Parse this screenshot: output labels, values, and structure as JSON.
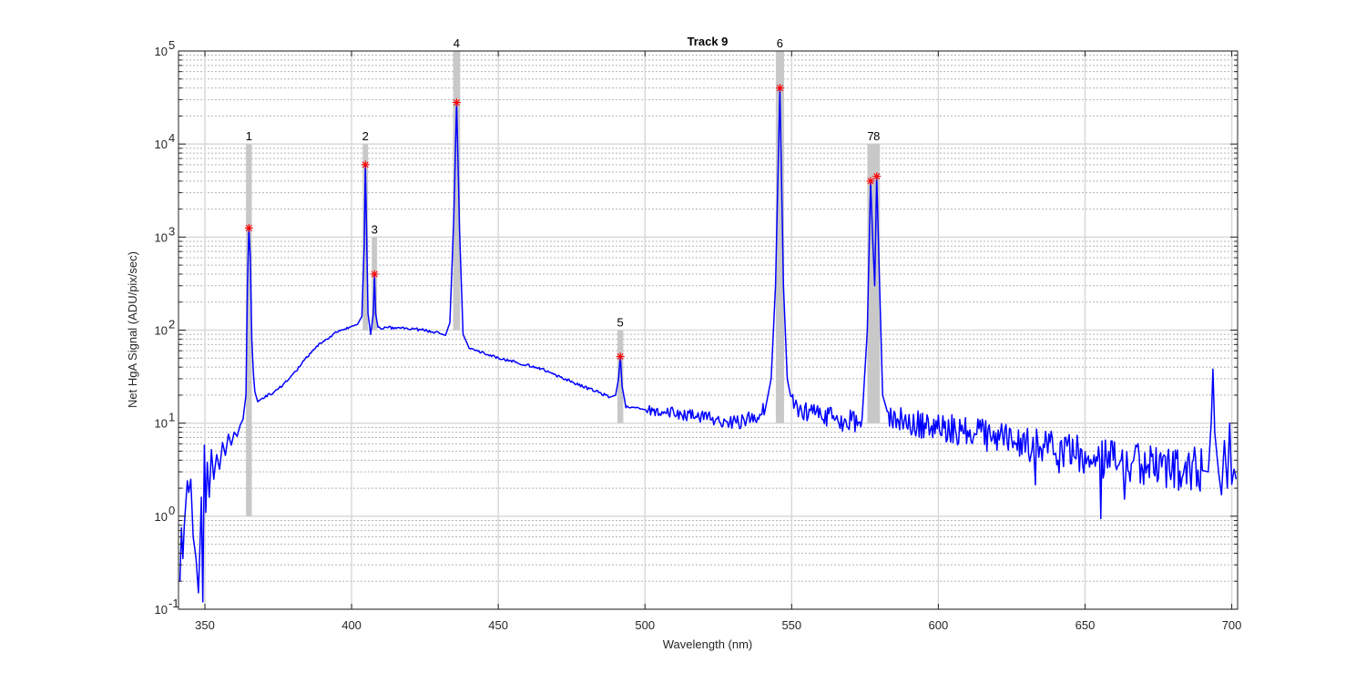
{
  "chart_data": {
    "type": "line",
    "title": "Track 9",
    "xlabel": "Wavelength (nm)",
    "ylabel": "Net HgA Signal (ADU/pix/sec)",
    "xlim": [
      341,
      702
    ],
    "ylim": [
      0.1,
      100000
    ],
    "yscale": "log",
    "grid": true,
    "minor_grid": true,
    "x_ticks": [
      350,
      400,
      450,
      500,
      550,
      600,
      650,
      700
    ],
    "x_tick_labels": [
      "350",
      "400",
      "450",
      "500",
      "550",
      "600",
      "650",
      "700"
    ],
    "y_tick_exponents": [
      -1,
      0,
      1,
      2,
      3,
      4,
      5
    ],
    "y_tick_base": "10",
    "colors": {
      "series": "#0000ff",
      "peak_marker": "#ff0000",
      "band": "#c8c8c8"
    },
    "series": [
      {
        "points": [
          [
            341.5,
            0.2
          ],
          [
            342.0,
            0.75
          ],
          [
            342.5,
            0.35
          ],
          [
            343.0,
            0.8
          ],
          [
            344.0,
            2.4
          ],
          [
            344.5,
            1.8
          ],
          [
            345.2,
            2.5
          ],
          [
            346.0,
            0.6
          ],
          [
            347.0,
            0.35
          ],
          [
            347.8,
            0.15
          ],
          [
            348.3,
            0.45
          ],
          [
            348.8,
            1.6
          ],
          [
            349.3,
            0.12
          ],
          [
            349.8,
            5.8
          ],
          [
            350.3,
            1.1
          ],
          [
            350.8,
            3.8
          ],
          [
            351.5,
            1.6
          ],
          [
            352.2,
            5.2
          ],
          [
            353.0,
            2.5
          ],
          [
            354.0,
            4.6
          ],
          [
            355.0,
            3.2
          ],
          [
            356.0,
            6.2
          ],
          [
            357.0,
            4.5
          ],
          [
            358.0,
            7.6
          ],
          [
            359.0,
            5.8
          ],
          [
            360.0,
            8.0
          ],
          [
            361.0,
            7.2
          ],
          [
            362.0,
            9.5
          ],
          [
            363.0,
            11.0
          ],
          [
            364.0,
            20.0
          ],
          [
            364.5,
            300.0
          ],
          [
            365.0,
            1250.0
          ],
          [
            365.5,
            600.0
          ],
          [
            366.0,
            80.0
          ],
          [
            366.5,
            35.0
          ],
          [
            367.0,
            22.0
          ],
          [
            368.0,
            17.0
          ],
          [
            370.0,
            19.0
          ],
          [
            373.0,
            21.0
          ],
          [
            376.0,
            25.0
          ],
          [
            380.0,
            33.0
          ],
          [
            385.0,
            52.0
          ],
          [
            390.0,
            75.0
          ],
          [
            395.0,
            95.0
          ],
          [
            400.0,
            110.0
          ],
          [
            402.0,
            115.0
          ],
          [
            403.5,
            140.0
          ],
          [
            404.3,
            800.0
          ],
          [
            404.7,
            6000.0
          ],
          [
            405.1,
            1200.0
          ],
          [
            405.6,
            150.0
          ],
          [
            406.5,
            90.0
          ],
          [
            407.4,
            150.0
          ],
          [
            407.8,
            400.0
          ],
          [
            408.2,
            150.0
          ],
          [
            409.0,
            105.0
          ],
          [
            412.0,
            106.0
          ],
          [
            418.0,
            105.0
          ],
          [
            425.0,
            100.0
          ],
          [
            430.0,
            92.0
          ],
          [
            432.0,
            88.0
          ],
          [
            433.5,
            120.0
          ],
          [
            434.8,
            1500.0
          ],
          [
            435.8,
            28000.0
          ],
          [
            436.8,
            1200.0
          ],
          [
            438.0,
            90.0
          ],
          [
            440.0,
            65.0
          ],
          [
            445.0,
            57.0
          ],
          [
            450.0,
            50.0
          ],
          [
            455.0,
            46.0
          ],
          [
            460.0,
            42.0
          ],
          [
            465.0,
            38.0
          ],
          [
            470.0,
            32.0
          ],
          [
            475.0,
            28.0
          ],
          [
            480.0,
            24.0
          ],
          [
            485.0,
            21.0
          ],
          [
            488.0,
            19.0
          ],
          [
            490.0,
            20.0
          ],
          [
            491.0,
            30.0
          ],
          [
            491.6,
            52.0
          ],
          [
            492.2,
            25.0
          ],
          [
            493.5,
            15.0
          ],
          [
            496.0,
            14.5
          ],
          [
            500.0,
            14.0
          ],
          [
            505.0,
            13.0
          ],
          [
            510.0,
            13.0
          ],
          [
            515.0,
            12.0
          ],
          [
            520.0,
            12.0
          ],
          [
            525.0,
            11.0
          ],
          [
            530.0,
            10.0
          ],
          [
            535.0,
            11.0
          ],
          [
            538.0,
            12.0
          ],
          [
            541.0,
            14.0
          ],
          [
            543.0,
            30.0
          ],
          [
            544.5,
            300.0
          ],
          [
            546.0,
            40000.0
          ],
          [
            547.2,
            300.0
          ],
          [
            548.5,
            30.0
          ],
          [
            550.0,
            17.0
          ],
          [
            553.0,
            14.0
          ],
          [
            556.0,
            13.0
          ],
          [
            560.0,
            12.0
          ],
          [
            565.0,
            11.0
          ],
          [
            570.0,
            10.5
          ],
          [
            574.0,
            11.0
          ],
          [
            575.8,
            100.0
          ],
          [
            576.9,
            4000.0
          ],
          [
            577.6,
            1000.0
          ],
          [
            578.3,
            300.0
          ],
          [
            579.0,
            4500.0
          ],
          [
            579.8,
            500.0
          ],
          [
            581.0,
            20.0
          ],
          [
            583.0,
            12.0
          ],
          [
            586.0,
            11.0
          ],
          [
            590.0,
            10.0
          ],
          [
            595.0,
            9.5
          ],
          [
            600.0,
            9.0
          ],
          [
            605.0,
            8.5
          ],
          [
            610.0,
            8.0
          ],
          [
            615.0,
            7.5
          ],
          [
            620.0,
            7.0
          ],
          [
            625.0,
            6.5
          ],
          [
            630.0,
            6.0
          ],
          [
            635.0,
            5.5
          ],
          [
            640.0,
            5.2
          ],
          [
            645.0,
            4.8
          ],
          [
            650.0,
            4.5
          ],
          [
            655.0,
            4.2
          ],
          [
            660.0,
            4.0
          ],
          [
            665.0,
            3.8
          ],
          [
            670.0,
            3.6
          ],
          [
            675.0,
            3.4
          ],
          [
            680.0,
            3.3
          ],
          [
            685.0,
            3.2
          ],
          [
            690.0,
            3.1
          ],
          [
            692.0,
            3.0
          ],
          [
            693.0,
            10.0
          ],
          [
            693.6,
            38.0
          ],
          [
            694.2,
            8.0
          ],
          [
            695.5,
            3.0
          ],
          [
            696.5,
            1.7
          ],
          [
            697.5,
            6.5
          ],
          [
            698.5,
            2.0
          ],
          [
            699.3,
            10.0
          ],
          [
            700.0,
            2.2
          ],
          [
            700.8,
            3.2
          ],
          [
            701.5,
            2.5
          ]
        ]
      }
    ],
    "peaks": [
      {
        "label": "1",
        "x": 365.0,
        "y": 1250,
        "band": [
          364.0,
          366.0
        ],
        "band_top": 10000,
        "label_y": 10000
      },
      {
        "label": "2",
        "x": 404.7,
        "y": 6000,
        "band": [
          403.8,
          405.6
        ],
        "band_top": 10000,
        "label_y": 10000
      },
      {
        "label": "3",
        "x": 407.8,
        "y": 400,
        "band": [
          406.9,
          408.7
        ],
        "band_top": 1000,
        "label_y": 1000
      },
      {
        "label": "4",
        "x": 435.8,
        "y": 28000,
        "band": [
          434.6,
          437.0
        ],
        "band_top": 100000,
        "label_y": 100000
      },
      {
        "label": "5",
        "x": 491.6,
        "y": 52,
        "band": [
          490.6,
          492.6
        ],
        "band_top": 100,
        "label_y": 100
      },
      {
        "label": "6",
        "x": 546.0,
        "y": 40000,
        "band": [
          544.6,
          547.4
        ],
        "band_top": 100000,
        "label_y": 100000
      },
      {
        "label": "7",
        "x": 576.9,
        "y": 4000,
        "band": [
          575.8,
          578.0
        ],
        "band_top": 10000,
        "label_y": 10000
      },
      {
        "label": "8",
        "x": 579.0,
        "y": 4500,
        "band": [
          577.9,
          580.1
        ],
        "band_top": 10000,
        "label_y": 10000
      }
    ],
    "band_bottoms": {
      "1": 1,
      "2": 100,
      "3": 100,
      "4": 100,
      "5": 10,
      "6": 10,
      "7": 10,
      "8": 10
    },
    "noise": {
      "seed": 9,
      "x_range": [
        500,
        690
      ]
    }
  }
}
